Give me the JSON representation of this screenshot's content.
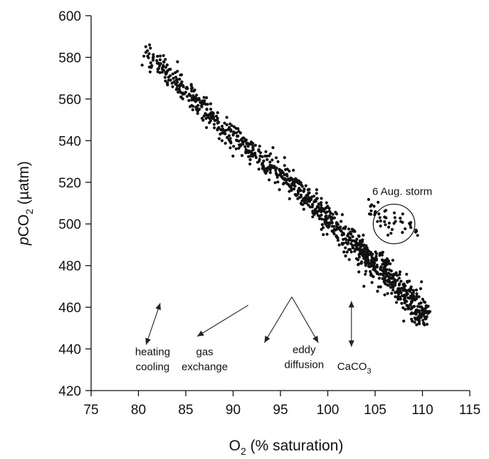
{
  "chart_data": {
    "type": "scatter",
    "xlabel": {
      "base": "O",
      "sub": "2",
      "rest": " (% saturation)"
    },
    "ylabel": {
      "italic": "p",
      "base": "CO",
      "sub": "2",
      "rest": " (µatm)"
    },
    "xlim": [
      75,
      115
    ],
    "ylim": [
      420,
      600
    ],
    "xticks": [
      75,
      80,
      85,
      90,
      95,
      100,
      105,
      110,
      115
    ],
    "yticks": [
      420,
      440,
      460,
      480,
      500,
      520,
      540,
      560,
      580,
      600
    ],
    "grid": false,
    "legend": "none",
    "trend_segments": [
      {
        "x": [
          80.8,
          88
        ],
        "y": [
          583,
          550
        ],
        "spread": 5
      },
      {
        "x": [
          88,
          96
        ],
        "y": [
          550,
          520
        ],
        "spread": 5
      },
      {
        "x": [
          96,
          104
        ],
        "y": [
          520,
          485
        ],
        "spread": 6
      },
      {
        "x": [
          104,
          110.5
        ],
        "y": [
          485,
          455
        ],
        "spread": 7
      }
    ],
    "points_per_segment": [
      190,
      210,
      330,
      360
    ],
    "cluster_storm": {
      "x": [
        104.3,
        109.5
      ],
      "y": [
        494,
        508
      ],
      "n": 45
    },
    "storm_circle": {
      "cx": 107,
      "cy": 500,
      "r_data_x": 2.2,
      "r_data_y": 9.5
    },
    "annotations": [
      {
        "id": "storm",
        "text": "6 Aug. storm",
        "x": 104.7,
        "y": 514
      },
      {
        "id": "heating",
        "lines": [
          "heating",
          "cooling"
        ],
        "x": 81.5,
        "y": 437
      },
      {
        "id": "gas",
        "lines": [
          "gas",
          "exchange"
        ],
        "x": 87.0,
        "y": 437
      },
      {
        "id": "eddy",
        "lines": [
          "eddy",
          "diffusion"
        ],
        "x": 97.5,
        "y": 438
      },
      {
        "id": "caco3",
        "base": "CaCO",
        "sub": "3",
        "x": 101.0,
        "y": 430
      }
    ],
    "process_arrows": [
      {
        "id": "heating-cooling",
        "from": [
          80.8,
          442
        ],
        "to": [
          82.3,
          462
        ],
        "heads": "both"
      },
      {
        "id": "gas-exchange",
        "from": [
          91.6,
          461
        ],
        "to": [
          86.2,
          446
        ],
        "heads": "end"
      },
      {
        "id": "eddy-left",
        "from": [
          96.2,
          465
        ],
        "to": [
          93.3,
          443
        ],
        "heads": "end"
      },
      {
        "id": "eddy-right",
        "from": [
          96.2,
          465
        ],
        "to": [
          99.0,
          443
        ],
        "heads": "end"
      },
      {
        "id": "caco3",
        "from": [
          102.5,
          463
        ],
        "to": [
          102.5,
          441
        ],
        "heads": "both"
      }
    ],
    "colors": {
      "points": "#111111",
      "axes": "#111111"
    }
  }
}
